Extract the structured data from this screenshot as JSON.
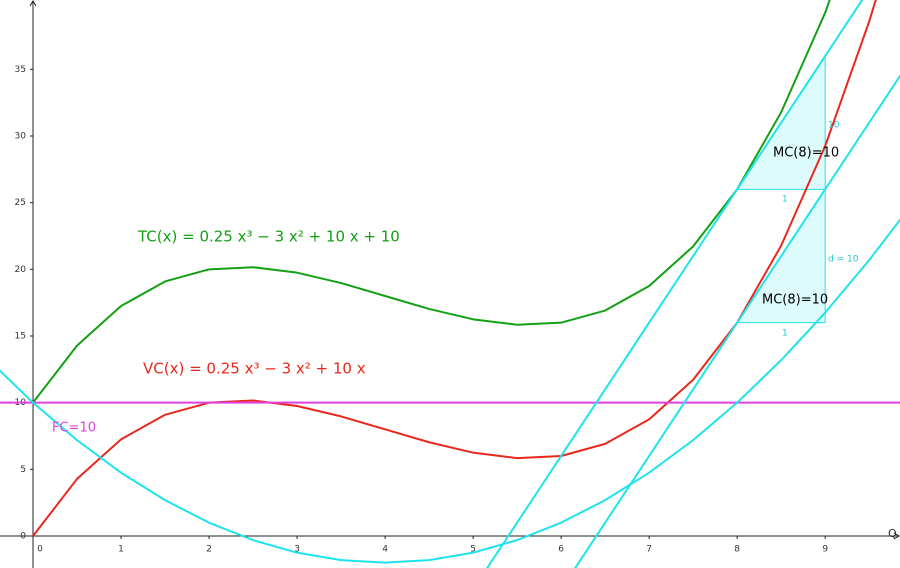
{
  "chart_data": {
    "type": "line",
    "x_label": "Q",
    "xlim": [
      -0.375,
      9.85
    ],
    "ylim": [
      -2.4,
      40.2
    ],
    "xticks": [
      0,
      1,
      2,
      3,
      4,
      5,
      6,
      7,
      8,
      9
    ],
    "yticks": [
      0,
      5,
      10,
      15,
      20,
      25,
      30,
      35
    ],
    "grid": false,
    "series": [
      {
        "name": "TC(x) = 0.25 x³ − 3 x² + 10 x + 10",
        "color": "#13a013",
        "x": [
          0,
          0.5,
          1,
          1.5,
          2,
          2.5,
          3,
          3.5,
          4,
          4.5,
          5,
          5.5,
          6,
          6.5,
          7,
          7.5,
          8,
          8.5,
          9,
          9.5
        ],
        "values": [
          10,
          14.28,
          17.25,
          19.09,
          20,
          20.16,
          19.75,
          18.97,
          18,
          17.03,
          16.25,
          15.84,
          16,
          16.91,
          18.75,
          21.72,
          26,
          31.78,
          39.25,
          48.59
        ]
      },
      {
        "name": "VC(x) = 0.25 x³ − 3 x² + 10 x",
        "color": "#e8281c",
        "x": [
          0,
          0.5,
          1,
          1.5,
          2,
          2.5,
          3,
          3.5,
          4,
          4.5,
          5,
          5.5,
          6,
          6.5,
          7,
          7.5,
          8,
          8.5,
          9,
          9.5,
          9.75
        ],
        "values": [
          0,
          4.28,
          7.25,
          9.09,
          10,
          10.16,
          9.75,
          8.97,
          8,
          7.03,
          6.25,
          5.84,
          6,
          6.91,
          8.75,
          11.72,
          16,
          21.78,
          29.25,
          38.59,
          44.02
        ]
      },
      {
        "name": "FC=10",
        "color": "#e040e0",
        "x": [
          -0.5,
          10
        ],
        "values": [
          10,
          10
        ]
      },
      {
        "color": "#1fe3ea",
        "x": [
          -0.5,
          0,
          0.5,
          1,
          1.5,
          2,
          2.5,
          3,
          3.5,
          4,
          4.5,
          5,
          5.5,
          6,
          6.5,
          7,
          7.5,
          8,
          8.5,
          9,
          9.5,
          10
        ],
        "values": [
          13.19,
          10,
          7.19,
          4.75,
          2.69,
          1,
          -0.31,
          -1.25,
          -1.81,
          -2,
          -1.81,
          -1.25,
          -0.31,
          1,
          2.69,
          4.75,
          7.19,
          10,
          13.19,
          16.75,
          20.69,
          25
        ]
      },
      {
        "color": "#1fe3ea",
        "x": [
          5,
          10
        ],
        "values": [
          -4,
          46
        ]
      },
      {
        "color": "#1fe3ea",
        "x": [
          6,
          10
        ],
        "values": [
          -4,
          36
        ]
      }
    ],
    "slope_triangles": [
      {
        "x": [
          8,
          9,
          9
        ],
        "y": [
          26,
          26,
          36
        ],
        "run_label": "1",
        "rise_label": "10",
        "label": "MC(8)=10"
      },
      {
        "x": [
          8,
          9,
          9
        ],
        "y": [
          16,
          16,
          26
        ],
        "run_label": "1",
        "rise_label": "d = 10",
        "label": "MC(8)=10"
      }
    ]
  }
}
